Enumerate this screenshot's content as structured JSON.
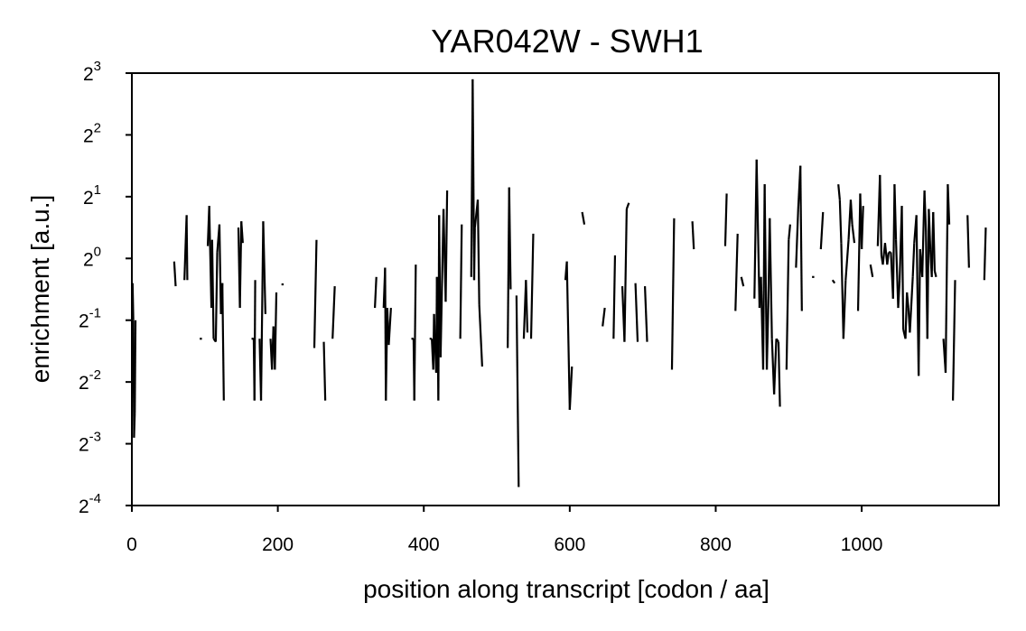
{
  "chart_data": {
    "type": "line",
    "title": "YAR042W - SWH1",
    "xlabel": "position along transcript [codon / aa]",
    "ylabel": "enrichment [a.u.]",
    "xlim": [
      0,
      1188
    ],
    "ylim_log2": [
      -4,
      3
    ],
    "y_scale": "log2",
    "x_ticks": [
      0,
      200,
      400,
      600,
      800,
      1000
    ],
    "x_tick_labels": [
      "0",
      "200",
      "400",
      "600",
      "800",
      "1000"
    ],
    "y_ticks": [
      {
        "base": "2",
        "exp": "3",
        "value": 3
      },
      {
        "base": "2",
        "exp": "2",
        "value": 2
      },
      {
        "base": "2",
        "exp": "1",
        "value": 1
      },
      {
        "base": "2",
        "exp": "0",
        "value": 0
      },
      {
        "base": "2",
        "exp": "-1",
        "value": -1
      },
      {
        "base": "2",
        "exp": "-2",
        "value": -2
      },
      {
        "base": "2",
        "exp": "-3",
        "value": -3
      },
      {
        "base": "2",
        "exp": "-4",
        "value": -4
      }
    ],
    "grid": false,
    "legend": "none",
    "line_color": "#000000",
    "series": [
      {
        "values_note": "per-codon log2 enrichment, null = gap",
        "points": [
          [
            1,
            -0.4
          ],
          [
            2,
            -1.0
          ],
          [
            3,
            -2.9
          ],
          [
            4,
            -2.5
          ],
          [
            5,
            -1.0
          ],
          [
            58,
            -0.05
          ],
          [
            60,
            -0.45
          ],
          [
            72,
            -0.35
          ],
          [
            75,
            0.7
          ],
          [
            76,
            -0.35
          ],
          [
            93,
            -1.3
          ],
          [
            96,
            -1.3
          ],
          [
            104,
            0.2
          ],
          [
            106,
            0.85
          ],
          [
            109,
            -0.8
          ],
          [
            110,
            0.3
          ],
          [
            112,
            -1.3
          ],
          [
            115,
            -1.35
          ],
          [
            117,
            0.1
          ],
          [
            120,
            0.55
          ],
          [
            122,
            -0.9
          ],
          [
            124,
            -0.4
          ],
          [
            126,
            -2.3
          ],
          [
            146,
            0.5
          ],
          [
            148,
            -0.8
          ],
          [
            150,
            0.6
          ],
          [
            152,
            0.25
          ],
          [
            164,
            -1.3
          ],
          [
            167,
            -1.3
          ],
          [
            168,
            -2.3
          ],
          [
            169,
            -0.35
          ],
          [
            175,
            -1.3
          ],
          [
            177,
            -2.3
          ],
          [
            180,
            0.6
          ],
          [
            183,
            -0.9
          ],
          [
            190,
            -1.3
          ],
          [
            192,
            -1.8
          ],
          [
            194,
            -1.1
          ],
          [
            196,
            -1.8
          ],
          [
            198,
            -0.55
          ],
          [
            205,
            -0.42
          ],
          [
            208,
            -0.42
          ],
          [
            250,
            -1.45
          ],
          [
            253,
            0.3
          ],
          [
            263,
            -1.35
          ],
          [
            265,
            -2.3
          ],
          [
            275,
            -1.3
          ],
          [
            278,
            -0.45
          ],
          [
            333,
            -0.8
          ],
          [
            335,
            -0.3
          ],
          [
            345,
            -0.8
          ],
          [
            347,
            -0.15
          ],
          [
            348,
            -2.3
          ],
          [
            350,
            -0.8
          ],
          [
            352,
            -1.4
          ],
          [
            355,
            -0.8
          ],
          [
            383,
            -1.3
          ],
          [
            386,
            -1.3
          ],
          [
            387,
            -2.3
          ],
          [
            389,
            -0.1
          ],
          [
            408,
            -1.3
          ],
          [
            411,
            -1.3
          ],
          [
            413,
            -1.8
          ],
          [
            414,
            -0.9
          ],
          [
            417,
            -1.85
          ],
          [
            418,
            -0.3
          ],
          [
            420,
            -2.3
          ],
          [
            421,
            0.7
          ],
          [
            423,
            -1.6
          ],
          [
            427,
            0.8
          ],
          [
            430,
            -0.7
          ],
          [
            432,
            1.1
          ],
          [
            450,
            -1.3
          ],
          [
            452,
            0.55
          ],
          [
            465,
            -0.3
          ],
          [
            467,
            2.9
          ],
          [
            469,
            -0.35
          ],
          [
            470,
            0.5
          ],
          [
            474,
            0.95
          ],
          [
            476,
            -0.75
          ],
          [
            480,
            -1.75
          ],
          [
            515,
            -1.45
          ],
          [
            517,
            1.15
          ],
          [
            519,
            -0.5
          ],
          [
            527,
            -0.6
          ],
          [
            530,
            -3.7
          ],
          [
            537,
            -1.3
          ],
          [
            540,
            -0.35
          ],
          [
            542,
            -1.2
          ],
          [
            547,
            -1.3
          ],
          [
            550,
            0.4
          ],
          [
            594,
            -0.35
          ],
          [
            596,
            -0.05
          ],
          [
            600,
            -2.45
          ],
          [
            603,
            -1.75
          ],
          [
            617,
            0.75
          ],
          [
            620,
            0.55
          ],
          [
            645,
            -1.1
          ],
          [
            648,
            -0.8
          ],
          [
            660,
            -1.3
          ],
          [
            662,
            0.05
          ],
          [
            672,
            -0.45
          ],
          [
            675,
            -1.35
          ],
          [
            678,
            0.8
          ],
          [
            681,
            0.9
          ],
          [
            690,
            -0.4
          ],
          [
            693,
            -1.35
          ],
          [
            703,
            -0.45
          ],
          [
            706,
            -1.35
          ],
          [
            740,
            -1.8
          ],
          [
            743,
            0.65
          ],
          [
            768,
            0.6
          ],
          [
            770,
            0.15
          ],
          [
            813,
            0.2
          ],
          [
            815,
            1.05
          ],
          [
            827,
            -0.85
          ],
          [
            830,
            0.4
          ],
          [
            835,
            -0.3
          ],
          [
            838,
            -0.45
          ],
          [
            853,
            -0.65
          ],
          [
            856,
            1.6
          ],
          [
            860,
            -0.8
          ],
          [
            862,
            -0.3
          ],
          [
            865,
            -1.8
          ],
          [
            867,
            1.2
          ],
          [
            870,
            -1.8
          ],
          [
            872,
            -0.8
          ],
          [
            874,
            0.65
          ],
          [
            877,
            -1.3
          ],
          [
            880,
            -2.2
          ],
          [
            883,
            -1.3
          ],
          [
            886,
            -1.35
          ],
          [
            888,
            -2.4
          ],
          [
            897,
            -1.8
          ],
          [
            900,
            0.3
          ],
          [
            902,
            0.55
          ],
          [
            910,
            -0.15
          ],
          [
            913,
            0.8
          ],
          [
            916,
            1.5
          ],
          [
            918,
            -0.85
          ],
          [
            932,
            -0.3
          ],
          [
            935,
            -0.3
          ],
          [
            944,
            0.15
          ],
          [
            947,
            0.75
          ],
          [
            960,
            -0.35
          ],
          [
            963,
            -0.4
          ],
          [
            968,
            1.2
          ],
          [
            970,
            0.95
          ],
          [
            972,
            0.25
          ],
          [
            975,
            -1.3
          ],
          [
            978,
            -0.35
          ],
          [
            982,
            0.3
          ],
          [
            985,
            0.95
          ],
          [
            987,
            0.55
          ],
          [
            990,
            0.25
          ],
          [
            995,
            -0.85
          ],
          [
            998,
            1.05
          ],
          [
            1000,
            0.15
          ],
          [
            1002,
            0.85
          ],
          [
            1012,
            -0.1
          ],
          [
            1015,
            -0.3
          ],
          [
            1022,
            0.2
          ],
          [
            1025,
            1.35
          ],
          [
            1027,
            0.05
          ],
          [
            1029,
            -0.1
          ],
          [
            1032,
            0.25
          ],
          [
            1035,
            -0.1
          ],
          [
            1037,
            0.1
          ],
          [
            1040,
            0.1
          ],
          [
            1043,
            -0.65
          ],
          [
            1045,
            1.2
          ],
          [
            1047,
            0.3
          ],
          [
            1050,
            -0.8
          ],
          [
            1052,
            -0.35
          ],
          [
            1055,
            0.85
          ],
          [
            1057,
            -1.15
          ],
          [
            1060,
            -1.3
          ],
          [
            1062,
            -0.55
          ],
          [
            1064,
            -0.8
          ],
          [
            1066,
            -1.2
          ],
          [
            1070,
            -0.3
          ],
          [
            1072,
            0.25
          ],
          [
            1075,
            0.7
          ],
          [
            1078,
            -1.9
          ],
          [
            1080,
            0.15
          ],
          [
            1083,
            -0.3
          ],
          [
            1086,
            1.1
          ],
          [
            1088,
            0.45
          ],
          [
            1090,
            -1.3
          ],
          [
            1092,
            0.8
          ],
          [
            1094,
            0.15
          ],
          [
            1096,
            -0.3
          ],
          [
            1098,
            0.75
          ],
          [
            1100,
            -0.2
          ],
          [
            1102,
            -0.3
          ],
          [
            1112,
            -1.3
          ],
          [
            1115,
            -1.85
          ],
          [
            1118,
            1.2
          ],
          [
            1120,
            0.55
          ],
          [
            1125,
            -2.3
          ],
          [
            1128,
            -0.35
          ],
          [
            1145,
            0.7
          ],
          [
            1147,
            -0.15
          ],
          [
            1168,
            -0.35
          ],
          [
            1170,
            0.5
          ]
        ]
      }
    ]
  }
}
